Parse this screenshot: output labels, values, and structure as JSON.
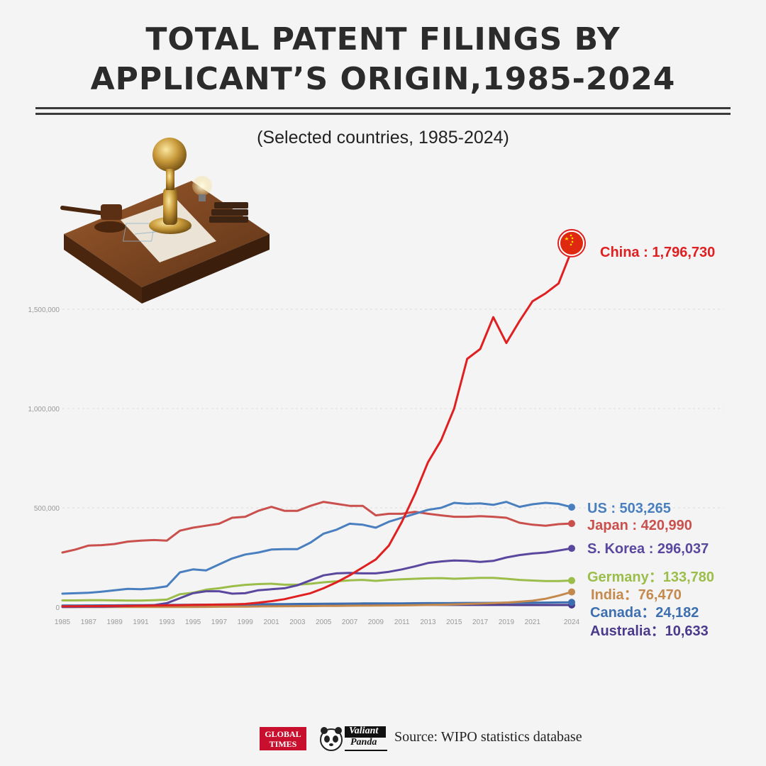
{
  "header": {
    "title_line1": "TOTAL PATENT FILINGS BY",
    "title_line2": "APPLICANT’S ORIGIN,1985-2024",
    "subtitle": "(Selected countries, 1985-2024)"
  },
  "footer": {
    "logo_global_times_line1": "GLOBAL",
    "logo_global_times_line2": "TIMES",
    "logo_valiant_panda_line1": "Valiant",
    "logo_valiant_panda_line2": "Panda",
    "source": "Source: WIPO statistics database"
  },
  "chart_data": {
    "type": "line",
    "title": "TOTAL PATENT FILINGS BY APPLICANT’S ORIGIN,1985-2024",
    "subtitle": "(Selected countries, 1985-2024)",
    "xlabel": "",
    "ylabel": "",
    "ylim": [
      0,
      1800000
    ],
    "grid": true,
    "x_tick_labels": [
      "1985",
      "1987",
      "1989",
      "1991",
      "1993",
      "1995",
      "1997",
      "1999",
      "2001",
      "2003",
      "2005",
      "2007",
      "2009",
      "2011",
      "2013",
      "2015",
      "2017",
      "2019",
      "2021",
      "2024"
    ],
    "y_tick_labels": [
      "0",
      "500,000",
      "1,000,000",
      "1,500,000"
    ],
    "y_ticks": [
      0,
      500000,
      1000000,
      1500000
    ],
    "x": [
      1985,
      1986,
      1987,
      1988,
      1989,
      1990,
      1991,
      1992,
      1993,
      1994,
      1995,
      1996,
      1997,
      1998,
      1999,
      2000,
      2001,
      2002,
      2003,
      2004,
      2005,
      2006,
      2007,
      2008,
      2009,
      2010,
      2011,
      2012,
      2013,
      2014,
      2015,
      2016,
      2017,
      2018,
      2019,
      2020,
      2021,
      2022,
      2023,
      2024
    ],
    "series": [
      {
        "name": "China",
        "label": "China : 1,796,730",
        "color": "#e02020",
        "marker": "china-flag",
        "values": [
          4000,
          4500,
          5000,
          5500,
          6000,
          6500,
          7000,
          8000,
          9000,
          10000,
          11000,
          12000,
          13000,
          14000,
          16000,
          22000,
          30000,
          40000,
          55000,
          70000,
          95000,
          125000,
          160000,
          200000,
          240000,
          310000,
          430000,
          570000,
          730000,
          840000,
          1000000,
          1250000,
          1300000,
          1460000,
          1330000,
          1440000,
          1540000,
          1580000,
          1630000,
          1796730
        ]
      },
      {
        "name": "US",
        "label": "US : 503,265",
        "color": "#4a7fbf",
        "marker": "dot",
        "values": [
          68000,
          70000,
          72000,
          78000,
          85000,
          92000,
          90000,
          95000,
          105000,
          175000,
          190000,
          185000,
          215000,
          245000,
          265000,
          275000,
          290000,
          292000,
          292000,
          325000,
          370000,
          390000,
          420000,
          415000,
          400000,
          430000,
          450000,
          470000,
          490000,
          500000,
          525000,
          520000,
          522000,
          515000,
          530000,
          505000,
          518000,
          525000,
          520000,
          503265
        ]
      },
      {
        "name": "Japan",
        "label": "Japan : 420,990",
        "color": "#c9504d",
        "marker": "dot",
        "values": [
          275000,
          290000,
          310000,
          312000,
          318000,
          330000,
          335000,
          338000,
          335000,
          385000,
          400000,
          410000,
          420000,
          450000,
          455000,
          485000,
          505000,
          485000,
          485000,
          510000,
          530000,
          520000,
          510000,
          510000,
          462000,
          470000,
          470000,
          480000,
          470000,
          462000,
          455000,
          455000,
          458000,
          455000,
          450000,
          425000,
          415000,
          410000,
          418000,
          420990
        ]
      },
      {
        "name": "S. Korea",
        "label": "S. Korea : 296,037",
        "color": "#5a479e",
        "marker": "dot",
        "values": [
          1000,
          1500,
          2000,
          3000,
          4000,
          6000,
          8000,
          10000,
          20000,
          45000,
          70000,
          80000,
          80000,
          68000,
          70000,
          85000,
          90000,
          95000,
          110000,
          135000,
          160000,
          170000,
          172000,
          170000,
          170000,
          178000,
          190000,
          205000,
          222000,
          230000,
          235000,
          233000,
          228000,
          233000,
          250000,
          262000,
          270000,
          275000,
          285000,
          296037
        ]
      },
      {
        "name": "Germany",
        "label": "Germany：133,780",
        "color": "#9bbd4a",
        "marker": "dot",
        "values": [
          34000,
          34000,
          34500,
          35000,
          34000,
          33000,
          33000,
          35000,
          38000,
          65000,
          72000,
          88000,
          95000,
          105000,
          112000,
          116000,
          118000,
          113000,
          113000,
          118000,
          125000,
          130000,
          135000,
          137000,
          132000,
          137000,
          140000,
          143000,
          145000,
          146000,
          143000,
          145000,
          147000,
          147000,
          143000,
          137000,
          134000,
          131000,
          131000,
          133780
        ]
      },
      {
        "name": "India",
        "label": "India：76,470",
        "color": "#c48a4d",
        "marker": "dot",
        "values": [
          500,
          500,
          500,
          500,
          600,
          600,
          700,
          800,
          900,
          1000,
          1200,
          1500,
          2000,
          2500,
          3000,
          3500,
          4000,
          4500,
          5000,
          5500,
          6000,
          6500,
          7000,
          7500,
          8000,
          8500,
          9000,
          10000,
          11000,
          12000,
          14000,
          16000,
          18000,
          20000,
          23000,
          27000,
          32000,
          42000,
          58000,
          76470
        ]
      },
      {
        "name": "Canada",
        "label": "Canada：24,182",
        "color": "#3d6fb0",
        "marker": "dot",
        "values": [
          8000,
          8200,
          8500,
          8800,
          9000,
          9500,
          10000,
          10500,
          11000,
          11500,
          12000,
          12500,
          13000,
          13500,
          14000,
          14500,
          15000,
          15500,
          16000,
          16500,
          17000,
          17500,
          18000,
          18500,
          18500,
          19000,
          19000,
          19500,
          20000,
          20000,
          20500,
          21000,
          21000,
          21500,
          22000,
          22000,
          22500,
          23000,
          23500,
          24182
        ]
      },
      {
        "name": "Australia",
        "label": "Australia：10,633",
        "color": "#4b3a8c",
        "marker": "dot",
        "values": [
          5000,
          5200,
          5400,
          5600,
          5800,
          6000,
          6200,
          6400,
          6600,
          7000,
          7500,
          8000,
          8500,
          9000,
          9500,
          10000,
          10500,
          11000,
          11000,
          11500,
          12000,
          12000,
          12000,
          12500,
          12000,
          11500,
          11500,
          11500,
          11500,
          11000,
          11000,
          11000,
          11000,
          11000,
          11000,
          10800,
          10700,
          10700,
          10650,
          10633
        ]
      }
    ]
  }
}
